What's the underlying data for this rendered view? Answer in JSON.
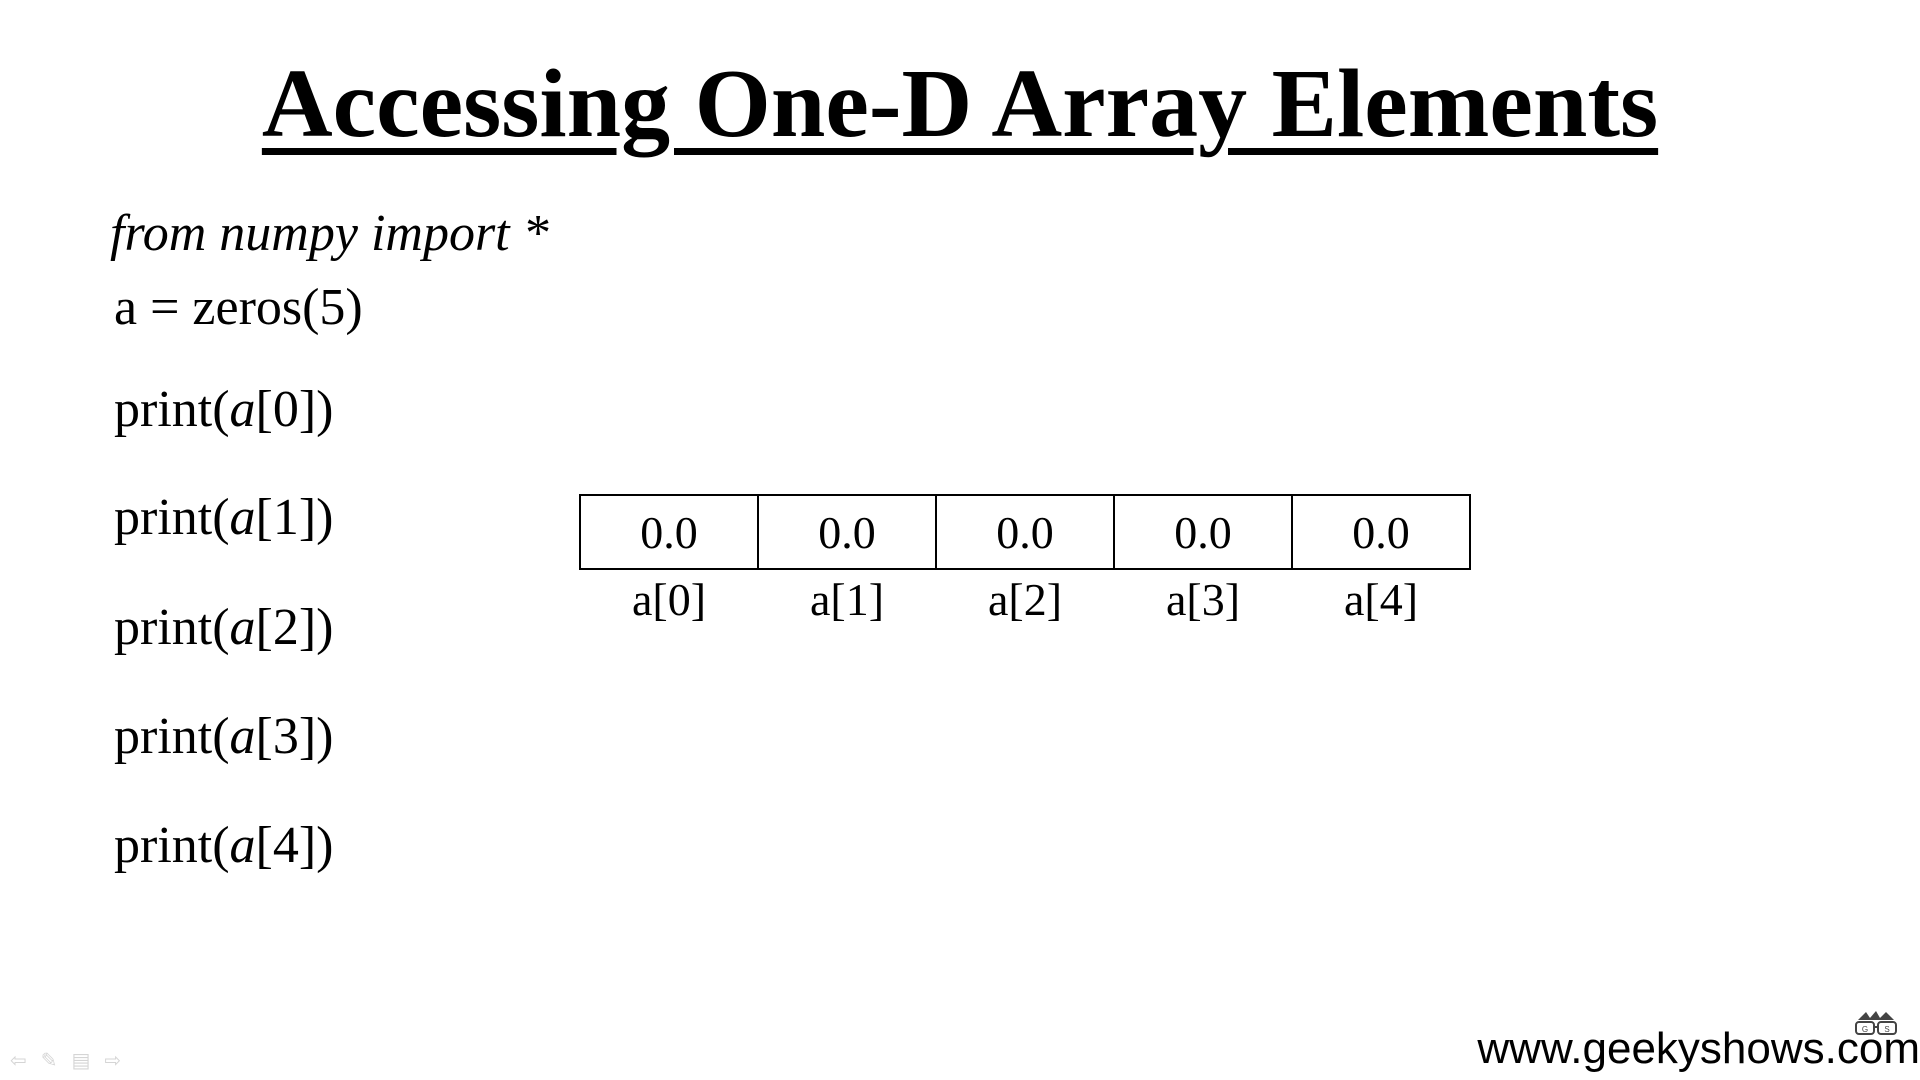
{
  "slide": {
    "title": "Accessing One-D Array Elements",
    "code": {
      "import_line": "from numpy import *",
      "assign_line": "a = zeros(5)",
      "print_lines": [
        {
          "prefix": "print(",
          "var": "a",
          "suffix": "[0])"
        },
        {
          "prefix": "print(",
          "var": "a",
          "suffix": "[1])"
        },
        {
          "prefix": "print(",
          "var": "a",
          "suffix": "[2])"
        },
        {
          "prefix": "print(",
          "var": "a",
          "suffix": "[3])"
        },
        {
          "prefix": "print(",
          "var": "a",
          "suffix": "[4])"
        }
      ]
    },
    "array": {
      "values": [
        "0.0",
        "0.0",
        "0.0",
        "0.0",
        "0.0"
      ],
      "indices": [
        "a[0]",
        "a[1]",
        "a[2]",
        "a[3]",
        "a[4]"
      ]
    },
    "footer": {
      "website": "www.geekyshows.com",
      "logo_icon": "geekyshows-logo-icon"
    },
    "controls": {
      "icons": [
        "back-arrow-icon",
        "pen-icon",
        "menu-icon",
        "forward-arrow-icon"
      ],
      "glyphs": [
        "⇦",
        "✎",
        "▤",
        "⇨"
      ]
    }
  }
}
